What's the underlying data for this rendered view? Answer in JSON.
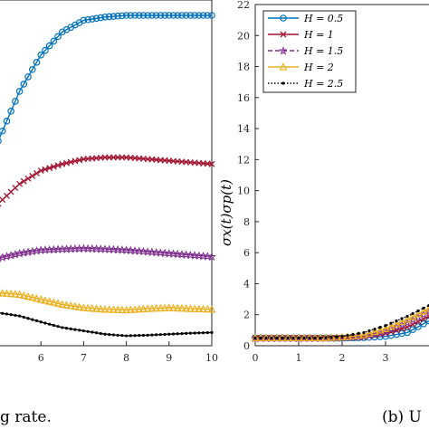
{
  "chart_data": [
    {
      "type": "line",
      "panel": "left",
      "xlabel": "",
      "ylabel": "",
      "xlim": [
        5,
        10
      ],
      "x_ticks": [
        "6",
        "7",
        "8",
        "9",
        "10"
      ],
      "caption_fragment": "g rate.",
      "series": [
        {
          "color": "#0072BD",
          "marker": "circle",
          "x": [
            5.0,
            5.5,
            6.0,
            6.5,
            7.0,
            7.5,
            8.0,
            8.5,
            9.0,
            9.5,
            10.0
          ],
          "values": [
            0.62,
            0.77,
            0.88,
            0.95,
            0.985,
            0.995,
            1.0,
            1.0,
            1.0,
            1.0,
            1.0
          ]
        },
        {
          "color": "#A2142F",
          "marker": "x",
          "x": [
            5.0,
            5.5,
            6.0,
            6.5,
            7.0,
            7.5,
            8.0,
            8.5,
            9.0,
            9.5,
            10.0
          ],
          "values": [
            0.43,
            0.49,
            0.53,
            0.55,
            0.565,
            0.57,
            0.57,
            0.565,
            0.56,
            0.555,
            0.55
          ]
        },
        {
          "color": "#7E2F8E",
          "marker": "star",
          "x": [
            5.0,
            5.5,
            6.0,
            6.5,
            7.0,
            7.5,
            8.0,
            8.5,
            9.0,
            9.5,
            10.0
          ],
          "values": [
            0.265,
            0.28,
            0.29,
            0.293,
            0.295,
            0.293,
            0.29,
            0.285,
            0.28,
            0.275,
            0.27
          ]
        },
        {
          "color": "#EDB120",
          "marker": "triangle",
          "x": [
            5.0,
            5.5,
            6.0,
            6.5,
            7.0,
            7.5,
            8.0,
            8.5,
            9.0,
            9.5,
            10.0
          ],
          "values": [
            0.16,
            0.155,
            0.14,
            0.125,
            0.115,
            0.11,
            0.108,
            0.112,
            0.115,
            0.112,
            0.11
          ]
        },
        {
          "color": "#000000",
          "marker": "dot",
          "x": [
            5.0,
            5.5,
            6.0,
            6.5,
            7.0,
            7.5,
            8.0,
            8.5,
            9.0,
            9.5,
            10.0
          ],
          "values": [
            0.1,
            0.09,
            0.072,
            0.055,
            0.045,
            0.035,
            0.03,
            0.032,
            0.035,
            0.038,
            0.04
          ]
        }
      ]
    },
    {
      "type": "line",
      "panel": "right",
      "xlabel": "",
      "ylabel": "σx(t)σp(t)",
      "xlim": [
        0,
        4
      ],
      "ylim": [
        0,
        22
      ],
      "x_ticks": [
        "0",
        "1",
        "2",
        "3"
      ],
      "y_ticks": [
        "0",
        "2",
        "4",
        "6",
        "8",
        "10",
        "12",
        "14",
        "16",
        "18",
        "20",
        "22"
      ],
      "caption_fragment": "(b) U",
      "legend_position": "top-left",
      "series": [
        {
          "name": "H = 0.5",
          "color": "#0072BD",
          "style": "solid",
          "marker": "circle",
          "x": [
            0,
            0.5,
            1.0,
            1.5,
            2.0,
            2.5,
            3.0,
            3.5,
            4.0
          ],
          "values": [
            0.5,
            0.5,
            0.5,
            0.5,
            0.5,
            0.52,
            0.6,
            0.85,
            1.6
          ]
        },
        {
          "name": "H = 1",
          "color": "#A2142F",
          "style": "solid",
          "marker": "x",
          "x": [
            0,
            0.5,
            1.0,
            1.5,
            2.0,
            2.5,
            3.0,
            3.5,
            4.0
          ],
          "values": [
            0.5,
            0.5,
            0.5,
            0.5,
            0.5,
            0.55,
            0.8,
            1.2,
            1.9
          ]
        },
        {
          "name": "H = 1.5",
          "color": "#7E2F8E",
          "style": "dashed",
          "marker": "star",
          "x": [
            0,
            0.5,
            1.0,
            1.5,
            2.0,
            2.5,
            3.0,
            3.5,
            4.0
          ],
          "values": [
            0.5,
            0.5,
            0.5,
            0.5,
            0.52,
            0.6,
            0.95,
            1.5,
            2.2
          ]
        },
        {
          "name": "H = 2",
          "color": "#EDB120",
          "style": "solid",
          "marker": "triangle",
          "x": [
            0,
            0.5,
            1.0,
            1.5,
            2.0,
            2.5,
            3.0,
            3.5,
            4.0
          ],
          "values": [
            0.5,
            0.5,
            0.5,
            0.5,
            0.55,
            0.7,
            1.1,
            1.7,
            2.4
          ]
        },
        {
          "name": "H = 2.5",
          "color": "#000000",
          "style": "dotted",
          "marker": "dot",
          "x": [
            0,
            0.5,
            1.0,
            1.5,
            2.0,
            2.5,
            3.0,
            3.5,
            4.0
          ],
          "values": [
            0.5,
            0.5,
            0.5,
            0.5,
            0.6,
            0.85,
            1.3,
            1.9,
            2.6
          ]
        }
      ]
    }
  ]
}
